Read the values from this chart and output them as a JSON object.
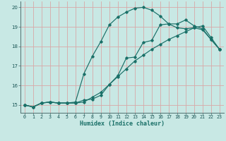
{
  "xlabel": "Humidex (Indice chaleur)",
  "xlim": [
    -0.5,
    23.5
  ],
  "ylim": [
    14.6,
    20.3
  ],
  "yticks": [
    15,
    16,
    17,
    18,
    19,
    20
  ],
  "xticks": [
    0,
    1,
    2,
    3,
    4,
    5,
    6,
    7,
    8,
    9,
    10,
    11,
    12,
    13,
    14,
    15,
    16,
    17,
    18,
    19,
    20,
    21,
    22,
    23
  ],
  "background_color": "#c8e8e4",
  "grid_color": "#d8a8a8",
  "line_color": "#1a7068",
  "line2_x": [
    0,
    1,
    2,
    3,
    4,
    5,
    6,
    7,
    8,
    9,
    10,
    11,
    12,
    13,
    14,
    15,
    16,
    17,
    18,
    19,
    20,
    21,
    22,
    23
  ],
  "line2_y": [
    15.0,
    14.9,
    15.1,
    15.15,
    15.1,
    15.1,
    15.15,
    16.6,
    17.5,
    18.25,
    19.1,
    19.5,
    19.75,
    19.95,
    20.0,
    19.85,
    19.55,
    19.15,
    19.15,
    19.35,
    19.05,
    18.9,
    18.35,
    17.85
  ],
  "line1_x": [
    0,
    1,
    2,
    3,
    4,
    5,
    6,
    7,
    8,
    9,
    10,
    11,
    12,
    13,
    14,
    15,
    16,
    17,
    18,
    19,
    20,
    21,
    22,
    23
  ],
  "line1_y": [
    15.0,
    14.9,
    15.1,
    15.15,
    15.1,
    15.1,
    15.1,
    15.25,
    15.3,
    15.5,
    16.05,
    16.5,
    17.4,
    17.45,
    18.2,
    18.3,
    19.1,
    19.15,
    18.95,
    18.9,
    18.95,
    18.85,
    18.35,
    17.85
  ],
  "line3_x": [
    0,
    1,
    2,
    3,
    4,
    5,
    6,
    7,
    8,
    9,
    10,
    11,
    12,
    13,
    14,
    15,
    16,
    17,
    18,
    19,
    20,
    21,
    22,
    23
  ],
  "line3_y": [
    15.0,
    14.9,
    15.1,
    15.15,
    15.1,
    15.1,
    15.1,
    15.15,
    15.4,
    15.65,
    16.05,
    16.45,
    16.85,
    17.25,
    17.55,
    17.85,
    18.1,
    18.35,
    18.55,
    18.75,
    18.95,
    19.05,
    18.45,
    17.85
  ]
}
